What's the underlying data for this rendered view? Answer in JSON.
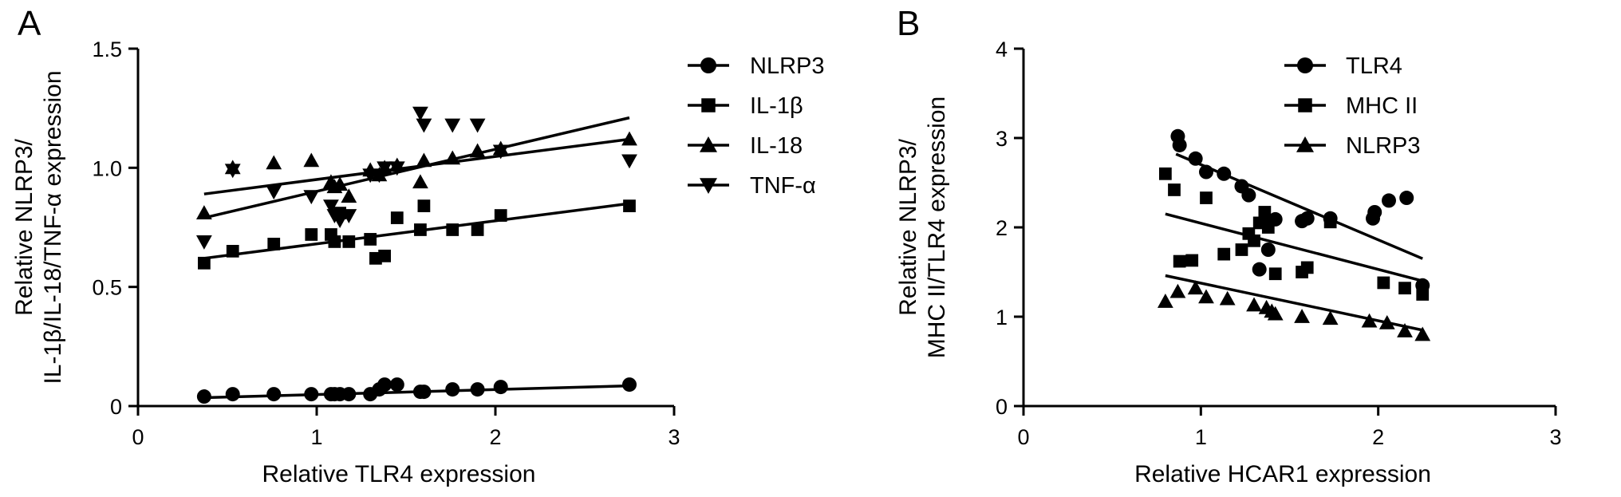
{
  "chart_data": [
    {
      "type": "scatter",
      "panel": "A",
      "xlabel": "Relative TLR4 expression",
      "ylabel_lines": [
        "Relative NLRP3/",
        "IL-1β/IL-18/TNF-α expression"
      ],
      "xlim": [
        0,
        3
      ],
      "ylim": [
        0,
        1.5
      ],
      "xticks": [
        "0",
        "1",
        "2",
        "3"
      ],
      "yticks": [
        "0",
        "0.5",
        "1.0",
        "1.5"
      ],
      "xtick_values": [
        0,
        1,
        2,
        3
      ],
      "ytick_values": [
        0,
        0.5,
        1.0,
        1.5
      ],
      "legend_position": "right",
      "series": [
        {
          "name": "NLRP3",
          "marker": "circle",
          "x": [
            0.37,
            0.53,
            0.76,
            0.97,
            1.08,
            1.1,
            1.13,
            1.18,
            1.3,
            1.35,
            1.38,
            1.45,
            1.58,
            1.6,
            1.76,
            1.9,
            2.03,
            2.75
          ],
          "y": [
            0.04,
            0.05,
            0.05,
            0.05,
            0.05,
            0.05,
            0.05,
            0.05,
            0.05,
            0.07,
            0.09,
            0.09,
            0.06,
            0.06,
            0.07,
            0.07,
            0.08,
            0.09
          ],
          "fit": [
            [
              0.37,
              0.035
            ],
            [
              2.75,
              0.085
            ]
          ]
        },
        {
          "name": "IL-1β",
          "marker": "square",
          "x": [
            0.37,
            0.53,
            0.76,
            0.97,
            1.08,
            1.1,
            1.13,
            1.18,
            1.3,
            1.33,
            1.38,
            1.45,
            1.58,
            1.6,
            1.76,
            1.9,
            2.03,
            2.75
          ],
          "y": [
            0.6,
            0.65,
            0.68,
            0.72,
            0.72,
            0.69,
            0.81,
            0.69,
            0.7,
            0.62,
            0.63,
            0.79,
            0.74,
            0.84,
            0.74,
            0.74,
            0.8,
            0.84
          ],
          "fit": [
            [
              0.37,
              0.62
            ],
            [
              2.75,
              0.85
            ]
          ]
        },
        {
          "name": "IL-18",
          "marker": "triangle-up",
          "x": [
            0.37,
            0.53,
            0.76,
            0.97,
            1.08,
            1.1,
            1.13,
            1.18,
            1.3,
            1.35,
            1.38,
            1.45,
            1.58,
            1.6,
            1.76,
            1.9,
            2.03,
            2.75
          ],
          "y": [
            0.81,
            1.0,
            1.02,
            1.03,
            0.94,
            0.92,
            0.93,
            0.88,
            0.99,
            0.97,
            1.0,
            1.01,
            0.94,
            1.03,
            1.04,
            1.07,
            1.08,
            1.12
          ],
          "fit": [
            [
              0.37,
              0.89
            ],
            [
              2.75,
              1.12
            ]
          ]
        },
        {
          "name": "TNF-α",
          "marker": "triangle-down",
          "x": [
            0.37,
            0.53,
            0.76,
            0.97,
            1.08,
            1.1,
            1.13,
            1.18,
            1.3,
            1.35,
            1.38,
            1.45,
            1.58,
            1.6,
            1.76,
            1.9,
            2.03,
            2.75
          ],
          "y": [
            0.69,
            0.99,
            0.9,
            0.88,
            0.84,
            0.8,
            0.78,
            0.8,
            0.97,
            0.97,
            1.0,
            1.0,
            1.23,
            1.18,
            1.18,
            1.18,
            1.07,
            1.03
          ],
          "fit": [
            [
              0.37,
              0.79
            ],
            [
              2.75,
              1.21
            ]
          ]
        }
      ]
    },
    {
      "type": "scatter",
      "panel": "B",
      "xlabel": "Relative HCAR1 expression",
      "ylabel_lines": [
        "Relative NLRP3/",
        "MHC II/TLR4 expression"
      ],
      "xlim": [
        0,
        3
      ],
      "ylim": [
        0,
        4
      ],
      "xticks": [
        "0",
        "1",
        "2",
        "3"
      ],
      "yticks": [
        "0",
        "1",
        "2",
        "3",
        "4"
      ],
      "xtick_values": [
        0,
        1,
        2,
        3
      ],
      "ytick_values": [
        0,
        1,
        2,
        3,
        4
      ],
      "legend_position": "top-right",
      "series": [
        {
          "name": "TLR4",
          "marker": "circle",
          "x": [
            0.87,
            0.88,
            0.97,
            1.03,
            1.13,
            1.23,
            1.27,
            1.33,
            1.36,
            1.38,
            1.42,
            1.57,
            1.6,
            1.73,
            1.97,
            1.98,
            2.06,
            2.16,
            2.25
          ],
          "y": [
            3.02,
            2.92,
            2.77,
            2.62,
            2.6,
            2.46,
            2.36,
            1.53,
            2.07,
            1.75,
            2.09,
            2.07,
            2.1,
            2.1,
            2.1,
            2.17,
            2.3,
            2.33,
            1.35
          ],
          "fit": [
            [
              0.86,
              2.82
            ],
            [
              2.25,
              1.65
            ]
          ]
        },
        {
          "name": "MHC II",
          "marker": "square",
          "x": [
            0.8,
            0.85,
            0.88,
            0.95,
            1.03,
            1.13,
            1.23,
            1.27,
            1.3,
            1.33,
            1.36,
            1.38,
            1.42,
            1.57,
            1.6,
            1.73,
            2.03,
            2.15,
            2.25
          ],
          "y": [
            2.6,
            2.42,
            1.62,
            1.63,
            2.33,
            1.7,
            1.75,
            1.93,
            1.85,
            2.05,
            2.17,
            2.0,
            1.48,
            1.5,
            1.55,
            2.06,
            1.38,
            1.32,
            1.25
          ],
          "fit": [
            [
              0.8,
              2.15
            ],
            [
              2.25,
              1.4
            ]
          ]
        },
        {
          "name": "NLRP3",
          "marker": "triangle-up",
          "x": [
            0.8,
            0.87,
            0.97,
            1.03,
            1.15,
            1.3,
            1.37,
            1.4,
            1.42,
            1.57,
            1.73,
            1.95,
            2.05,
            2.15,
            2.25
          ],
          "y": [
            1.17,
            1.28,
            1.32,
            1.22,
            1.2,
            1.13,
            1.1,
            1.06,
            1.03,
            1.0,
            0.98,
            0.95,
            0.93,
            0.84,
            0.8
          ],
          "fit": [
            [
              0.8,
              1.46
            ],
            [
              2.25,
              0.85
            ]
          ]
        }
      ]
    }
  ]
}
